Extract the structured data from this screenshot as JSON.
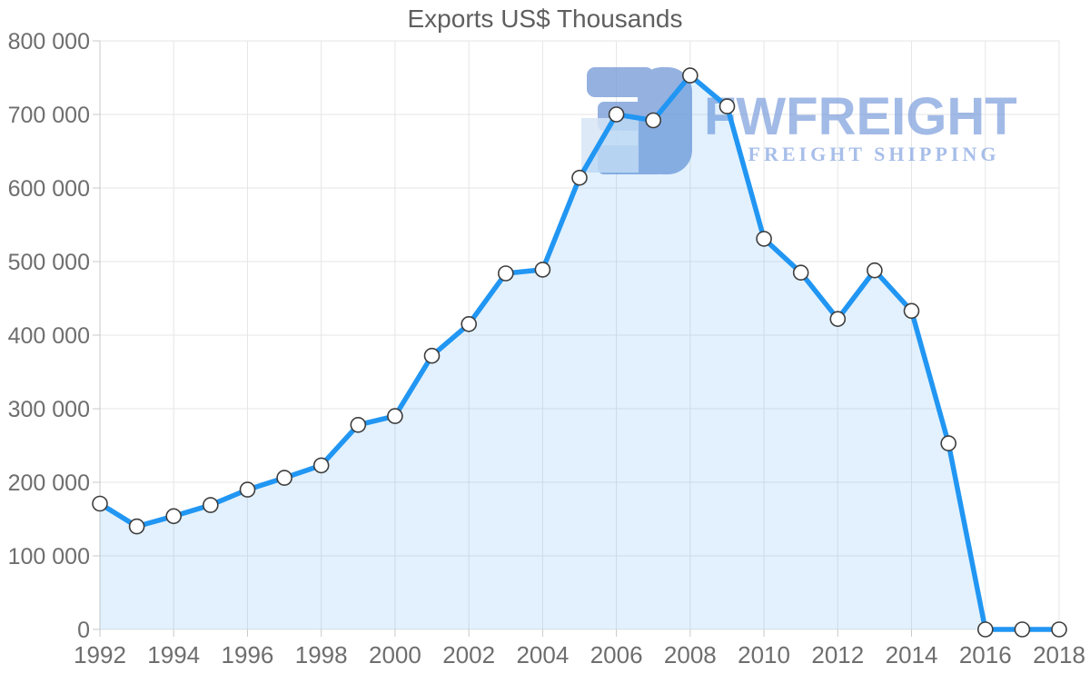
{
  "chart_data": {
    "type": "area",
    "title": "Exports US$ Thousands",
    "x": [
      1992,
      1993,
      1994,
      1995,
      1996,
      1997,
      1998,
      1999,
      2000,
      2001,
      2002,
      2003,
      2004,
      2005,
      2006,
      2007,
      2008,
      2009,
      2010,
      2011,
      2012,
      2013,
      2014,
      2015,
      2016,
      2017,
      2018
    ],
    "values": [
      171000,
      140000,
      154000,
      169000,
      190000,
      206000,
      223000,
      278000,
      290000,
      372000,
      415000,
      484000,
      489000,
      614000,
      700000,
      692000,
      753000,
      711000,
      531000,
      485000,
      422000,
      488000,
      433000,
      253000,
      0,
      0,
      0
    ],
    "xlabel": "",
    "ylabel": "",
    "ylim": [
      0,
      800000
    ],
    "ytick_step": 100000,
    "ytick_labels": [
      "0",
      "100 000",
      "200 000",
      "300 000",
      "400 000",
      "500 000",
      "600 000",
      "700 000",
      "800 000"
    ],
    "xtick_years": [
      1992,
      1994,
      1996,
      1998,
      2000,
      2002,
      2004,
      2006,
      2008,
      2010,
      2012,
      2014,
      2016,
      2018
    ],
    "xtick_labels": [
      "1992",
      "1994",
      "1996",
      "1998",
      "2000",
      "2002",
      "2004",
      "2006",
      "2008",
      "2010",
      "2012",
      "2014",
      "2016",
      "2018"
    ],
    "grid": true,
    "legend": "none",
    "colors": {
      "line": "#2196f3",
      "area_fill": "rgba(33,150,243,0.13)",
      "marker_fill": "#ffffff",
      "marker_stroke": "#3d3d3d",
      "grid": "#e6e6e6",
      "axis": "#c9c9c9",
      "tick_label": "#6e6e6e",
      "title": "#5f5f5f"
    }
  },
  "watermark": {
    "name": "FWFREIGHT",
    "tagline": "FREIGHT SHIPPING",
    "brand_color": "#7fa0dd",
    "logo_color": "#7b9ed9"
  }
}
